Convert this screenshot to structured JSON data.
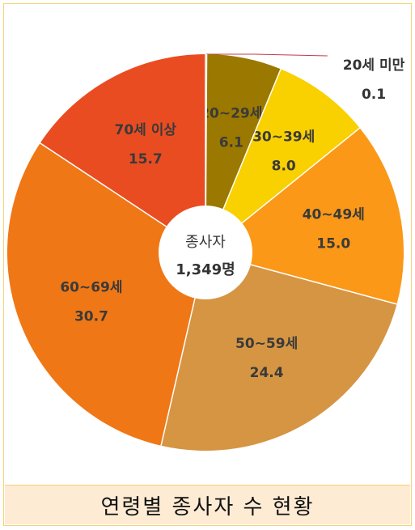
{
  "caption": "연령별 종사자 수 현황",
  "chart_data": {
    "type": "pie",
    "center_label": "종사자",
    "center_value": "1,349명",
    "slices": [
      {
        "label": "20세 미만",
        "value": 0.1,
        "value_text": "0.1",
        "color": "#c0394b"
      },
      {
        "label": "20~29세",
        "value": 6.1,
        "value_text": "6.1",
        "color": "#9b7800"
      },
      {
        "label": "30~39세",
        "value": 8.0,
        "value_text": "8.0",
        "color": "#f9d000"
      },
      {
        "label": "40~49세",
        "value": 15.0,
        "value_text": "15.0",
        "color": "#fb9817"
      },
      {
        "label": "50~59세",
        "value": 24.4,
        "value_text": "24.4",
        "color": "#d59542"
      },
      {
        "label": "60~69세",
        "value": 30.7,
        "value_text": "30.7",
        "color": "#f07716"
      },
      {
        "label": "70세 이상",
        "value": 15.7,
        "value_text": "15.7",
        "color": "#ea4c22"
      }
    ]
  }
}
